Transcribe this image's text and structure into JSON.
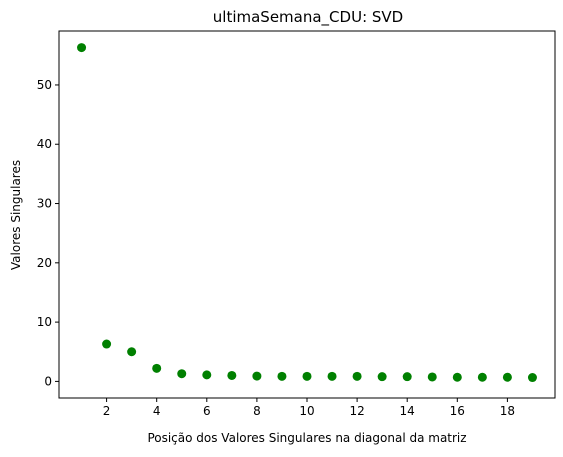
{
  "chart_data": {
    "type": "scatter",
    "title": "ultimaSemana_CDU: SVD",
    "xlabel": "Posição dos Valores Singulares na diagonal da matriz",
    "ylabel": "Valores Singulares",
    "xlim": [
      0.1,
      19.9
    ],
    "ylim": [
      -2.8,
      59.1
    ],
    "xticks": [
      2,
      4,
      6,
      8,
      10,
      12,
      14,
      16,
      18
    ],
    "yticks": [
      0,
      10,
      20,
      30,
      40,
      50
    ],
    "grid": false,
    "marker_color": "#008000",
    "series": [
      {
        "x": [
          1,
          2,
          3,
          4,
          5,
          6,
          7,
          8,
          9,
          10,
          11,
          12,
          13,
          14,
          15,
          16,
          17,
          18,
          19
        ],
        "y": [
          56.3,
          6.3,
          5.0,
          2.2,
          1.3,
          1.1,
          1.0,
          0.9,
          0.85,
          0.85,
          0.85,
          0.85,
          0.8,
          0.8,
          0.75,
          0.7,
          0.7,
          0.7,
          0.65
        ]
      }
    ]
  }
}
